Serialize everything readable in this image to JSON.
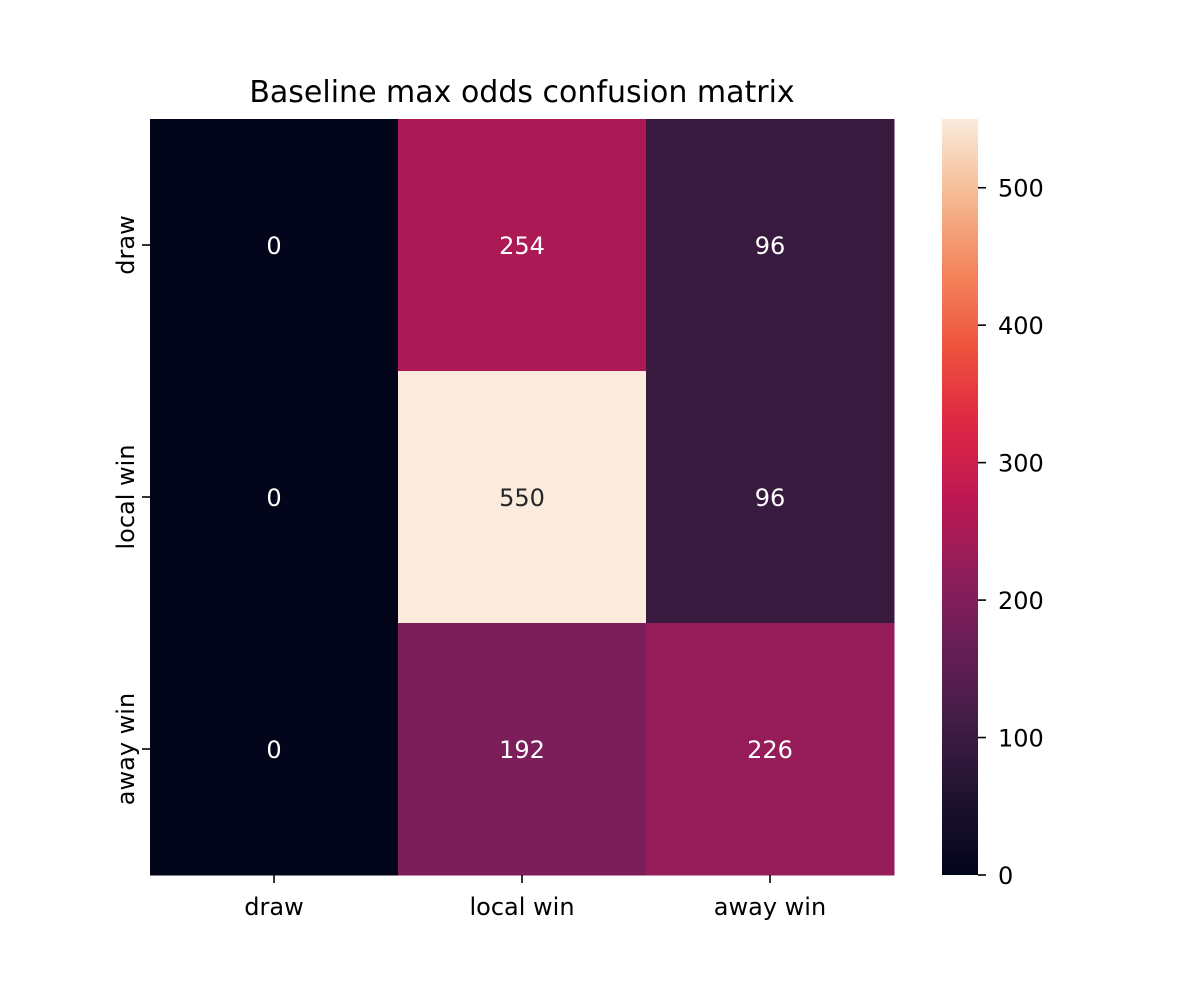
{
  "chart_data": {
    "type": "heatmap",
    "title": "Baseline max odds confusion matrix",
    "xlabel": "",
    "ylabel": "",
    "x_categories": [
      "draw",
      "local win",
      "away win"
    ],
    "y_categories": [
      "draw",
      "local win",
      "away win"
    ],
    "values": [
      [
        0,
        254,
        96
      ],
      [
        0,
        550,
        96
      ],
      [
        0,
        192,
        226
      ]
    ],
    "colorbar": {
      "range": [
        0,
        550
      ],
      "ticks": [
        0,
        100,
        200,
        300,
        400,
        500
      ],
      "colormap": "rocket",
      "location": "right"
    },
    "grid": false,
    "annotations": true
  }
}
